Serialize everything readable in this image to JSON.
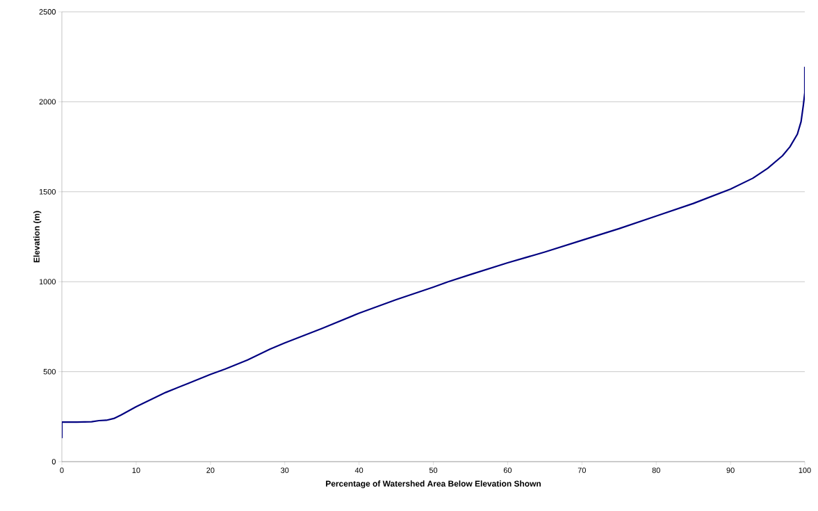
{
  "chart_data": {
    "type": "line",
    "xlabel": "Percentage of Watershed Area Below Elevation Shown",
    "ylabel": "Elevation (m)",
    "x": [
      0,
      0,
      2,
      4,
      5,
      6,
      7,
      8,
      10,
      12,
      14,
      17,
      20,
      22,
      25,
      28,
      30,
      35,
      40,
      45,
      50,
      52,
      55,
      60,
      65,
      70,
      75,
      80,
      85,
      90,
      93,
      95,
      97,
      98,
      99,
      99.5,
      99.8,
      100,
      100
    ],
    "series": [
      {
        "color": "#000080",
        "values": [
          130,
          220,
          220,
          222,
          228,
          230,
          240,
          260,
          305,
          345,
          385,
          435,
          485,
          515,
          565,
          625,
          660,
          740,
          825,
          900,
          970,
          1000,
          1040,
          1105,
          1165,
          1230,
          1295,
          1365,
          1435,
          1515,
          1575,
          1630,
          1700,
          1750,
          1820,
          1890,
          1980,
          2050,
          2195
        ]
      }
    ],
    "xlim": [
      0,
      100
    ],
    "ylim": [
      0,
      2500
    ],
    "xticks": [
      0,
      10,
      20,
      30,
      40,
      50,
      60,
      70,
      80,
      90,
      100
    ],
    "yticks": [
      0,
      500,
      1000,
      1500,
      2000,
      2500
    ],
    "grid": "y",
    "marker": "none",
    "line_style": "solid"
  }
}
